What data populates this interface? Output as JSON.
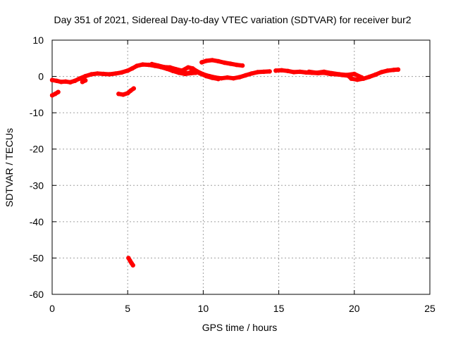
{
  "chart_data": {
    "type": "scatter",
    "title": "Day 351 of 2021, Sidereal Day-to-day VTEC variation (SDTVAR) for receiver bur2",
    "xlabel": "GPS time / hours",
    "ylabel": "SDTVAR / TECUs",
    "xlim": [
      0,
      25
    ],
    "ylim": [
      -60,
      10
    ],
    "xticks": [
      0,
      5,
      10,
      15,
      20,
      25
    ],
    "yticks": [
      10,
      0,
      -10,
      -20,
      -30,
      -40,
      -50,
      -60
    ],
    "grid": true,
    "series": [
      {
        "name": "SDTVAR",
        "color": "#ff0000",
        "segments": [
          [
            [
              0.0,
              -5.2
            ],
            [
              0.2,
              -4.8
            ],
            [
              0.4,
              -4.3
            ]
          ],
          [
            [
              0.0,
              -1.0
            ],
            [
              0.3,
              -1.2
            ],
            [
              0.6,
              -1.5
            ],
            [
              0.9,
              -1.4
            ],
            [
              1.2,
              -1.6
            ],
            [
              1.5,
              -1.2
            ],
            [
              1.8,
              -0.6
            ],
            [
              2.2,
              0.1
            ],
            [
              2.6,
              0.6
            ],
            [
              3.0,
              0.8
            ],
            [
              3.4,
              0.7
            ],
            [
              3.8,
              0.6
            ],
            [
              4.2,
              0.8
            ],
            [
              4.6,
              1.1
            ],
            [
              5.0,
              1.6
            ],
            [
              5.3,
              2.2
            ],
            [
              5.6,
              2.9
            ],
            [
              6.0,
              3.3
            ],
            [
              6.4,
              3.2
            ],
            [
              6.8,
              2.9
            ],
            [
              7.2,
              2.6
            ],
            [
              7.6,
              2.1
            ],
            [
              8.0,
              1.5
            ],
            [
              8.4,
              1.0
            ],
            [
              8.8,
              0.7
            ],
            [
              9.2,
              0.9
            ],
            [
              9.5,
              1.0
            ]
          ],
          [
            [
              2.0,
              -1.5
            ],
            [
              2.2,
              -1.1
            ]
          ],
          [
            [
              4.4,
              -4.8
            ],
            [
              4.7,
              -5.0
            ],
            [
              5.0,
              -4.6
            ],
            [
              5.2,
              -3.9
            ],
            [
              5.4,
              -3.3
            ]
          ],
          [
            [
              5.05,
              -50.0
            ],
            [
              5.15,
              -50.7
            ],
            [
              5.25,
              -51.4
            ],
            [
              5.35,
              -52.0
            ]
          ],
          [
            [
              6.6,
              3.4
            ],
            [
              7.0,
              3.0
            ],
            [
              7.4,
              2.6
            ],
            [
              7.8,
              2.5
            ],
            [
              8.2,
              2.0
            ],
            [
              8.6,
              1.6
            ],
            [
              9.0,
              2.5
            ],
            [
              9.3,
              2.2
            ],
            [
              9.6,
              1.4
            ],
            [
              10.0,
              0.6
            ],
            [
              10.4,
              0.1
            ],
            [
              10.8,
              -0.3
            ],
            [
              11.2,
              -0.5
            ],
            [
              11.6,
              -0.3
            ],
            [
              12.0,
              -0.5
            ],
            [
              12.4,
              -0.2
            ],
            [
              12.8,
              0.3
            ],
            [
              13.2,
              0.8
            ],
            [
              13.6,
              1.2
            ],
            [
              14.0,
              1.3
            ],
            [
              14.4,
              1.4
            ]
          ],
          [
            [
              8.2,
              1.4
            ],
            [
              8.6,
              1.1
            ],
            [
              9.0,
              0.9
            ],
            [
              9.4,
              1.6
            ],
            [
              9.8,
              0.8
            ],
            [
              10.2,
              0.1
            ],
            [
              10.6,
              -0.4
            ],
            [
              11.0,
              -0.7
            ]
          ],
          [
            [
              9.9,
              3.9
            ],
            [
              10.2,
              4.3
            ],
            [
              10.6,
              4.5
            ],
            [
              11.0,
              4.2
            ],
            [
              11.4,
              3.8
            ],
            [
              11.8,
              3.5
            ],
            [
              12.2,
              3.2
            ],
            [
              12.6,
              3.0
            ]
          ],
          [
            [
              14.8,
              1.6
            ],
            [
              15.2,
              1.7
            ],
            [
              15.6,
              1.5
            ],
            [
              16.0,
              1.2
            ],
            [
              16.4,
              1.3
            ],
            [
              16.8,
              1.1
            ],
            [
              17.2,
              1.0
            ],
            [
              17.6,
              0.9
            ],
            [
              18.0,
              1.0
            ],
            [
              18.4,
              0.7
            ],
            [
              18.8,
              0.6
            ],
            [
              19.2,
              0.4
            ],
            [
              19.6,
              0.2
            ],
            [
              19.8,
              -0.6
            ],
            [
              20.2,
              -0.9
            ],
            [
              20.6,
              -0.6
            ],
            [
              21.0,
              -0.1
            ],
            [
              21.4,
              0.5
            ],
            [
              21.8,
              1.2
            ],
            [
              22.2,
              1.6
            ],
            [
              22.6,
              1.8
            ],
            [
              22.9,
              1.9
            ]
          ],
          [
            [
              17.0,
              1.3
            ],
            [
              17.5,
              1.0
            ],
            [
              18.0,
              1.3
            ],
            [
              18.5,
              0.9
            ],
            [
              19.0,
              0.6
            ],
            [
              19.5,
              0.4
            ],
            [
              20.0,
              0.7
            ],
            [
              20.5,
              -0.3
            ]
          ]
        ]
      }
    ]
  }
}
